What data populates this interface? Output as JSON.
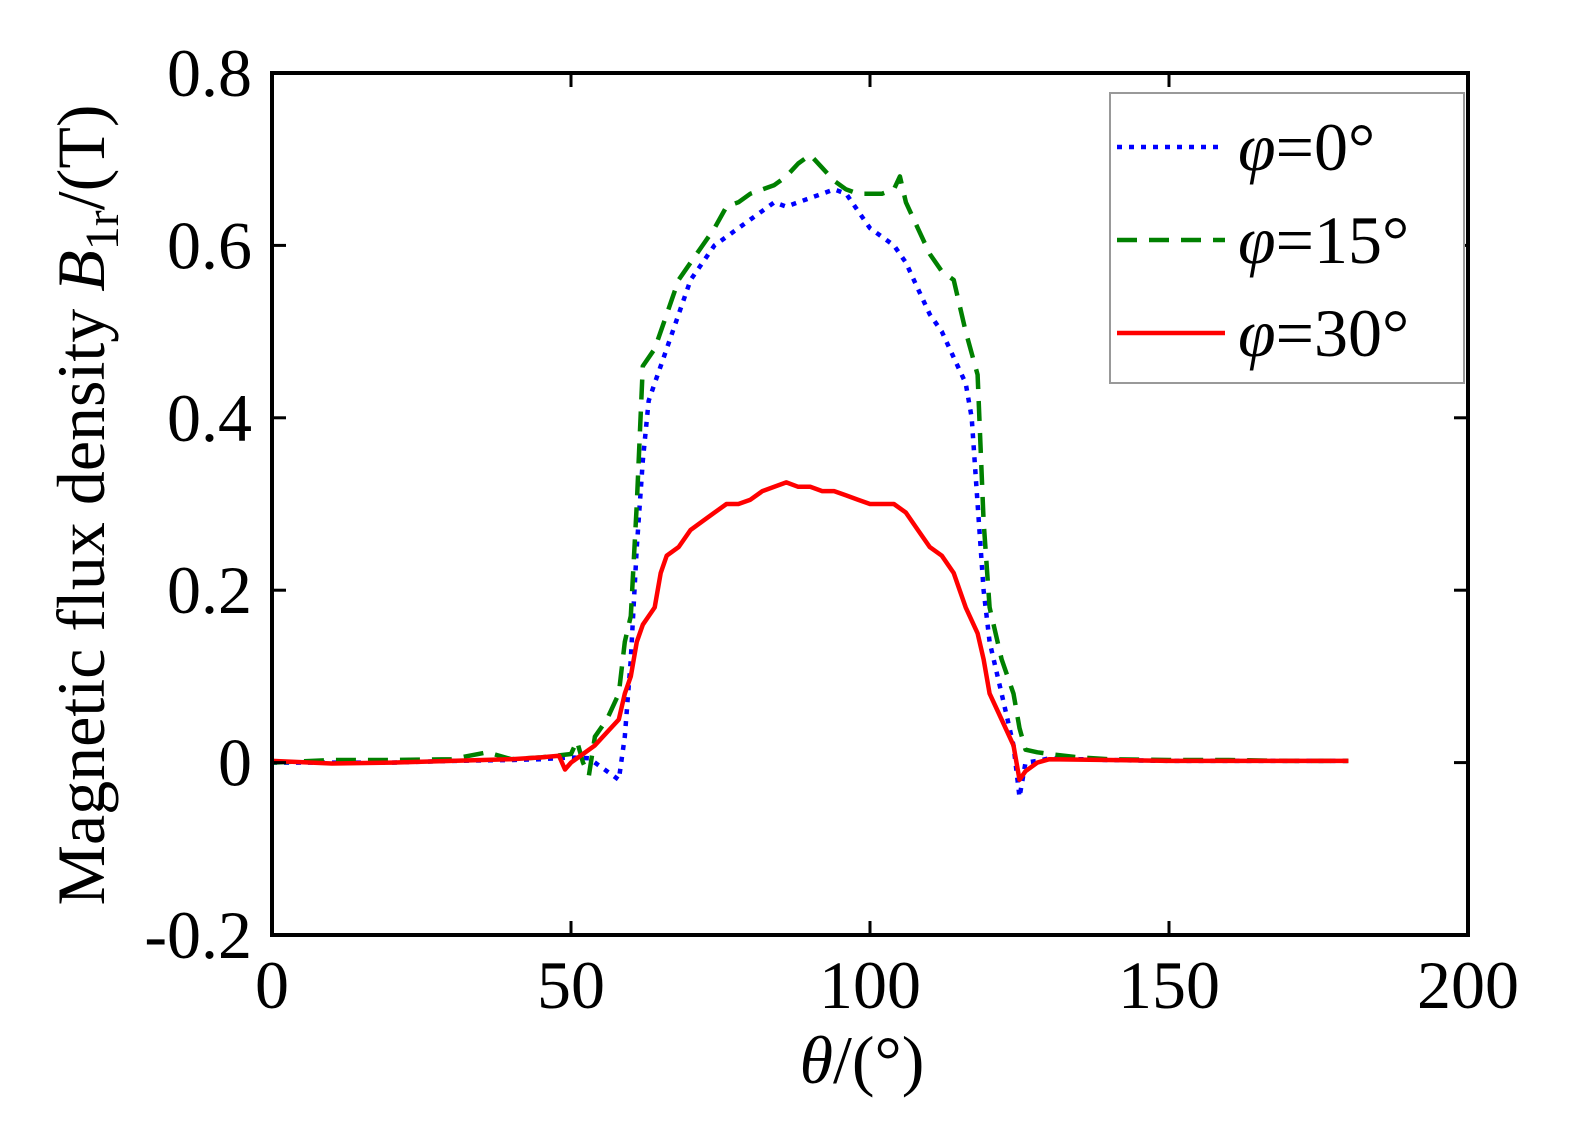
{
  "chart_data": {
    "type": "line",
    "title": "",
    "xlabel": {
      "symbol": "θ",
      "unit": "/(°)"
    },
    "ylabel": {
      "prefix": "Magnetic flux density ",
      "symbol": "B",
      "subscript": "1r",
      "unit": "/(T)"
    },
    "xlim": [
      0,
      200
    ],
    "ylim": [
      -0.2,
      0.8
    ],
    "xticks": [
      0,
      50,
      100,
      150,
      200
    ],
    "xtick_labels": [
      "0",
      "50",
      "100",
      "150",
      "200"
    ],
    "yticks": [
      -0.2,
      0,
      0.2,
      0.4,
      0.6,
      0.8
    ],
    "ytick_labels": [
      "-0.2",
      "0",
      "0.2",
      "0.4",
      "0.6",
      "0.8"
    ],
    "grid": false,
    "legend_position": "top-right",
    "series": [
      {
        "name": "φ=0°",
        "legend_symbol": "φ",
        "legend_value": "=0°",
        "color": "#0000ff",
        "style": "dotted",
        "x": [
          0,
          10,
          20,
          30,
          40,
          45,
          50,
          53,
          55,
          57,
          58,
          59,
          60,
          61,
          62,
          63,
          64,
          66,
          68,
          70,
          72,
          74,
          76,
          78,
          80,
          82,
          84,
          86,
          88,
          90,
          92,
          94,
          96,
          98,
          100,
          102,
          104,
          106,
          108,
          110,
          112,
          114,
          116,
          117,
          118,
          119,
          120,
          122,
          124,
          125,
          126,
          128,
          130,
          135,
          140,
          150,
          160,
          170,
          180
        ],
        "y": [
          0.0,
          0.0,
          0.0,
          0.002,
          0.003,
          0.004,
          0.006,
          0.005,
          -0.005,
          -0.015,
          -0.02,
          0.03,
          0.12,
          0.25,
          0.35,
          0.42,
          0.44,
          0.48,
          0.52,
          0.56,
          0.58,
          0.6,
          0.61,
          0.62,
          0.63,
          0.64,
          0.65,
          0.645,
          0.65,
          0.655,
          0.66,
          0.665,
          0.66,
          0.64,
          0.62,
          0.61,
          0.6,
          0.58,
          0.55,
          0.52,
          0.5,
          0.47,
          0.44,
          0.4,
          0.3,
          0.2,
          0.14,
          0.08,
          0.02,
          -0.04,
          0.0,
          0.002,
          0.005,
          0.004,
          0.003,
          0.002,
          0.002,
          0.002,
          0.002
        ]
      },
      {
        "name": "φ=15°",
        "legend_symbol": "φ",
        "legend_value": "=15°",
        "color": "#008000",
        "style": "dashed",
        "x": [
          0,
          10,
          20,
          30,
          36,
          40,
          45,
          50,
          51,
          52,
          53,
          54,
          56,
          58,
          59,
          60,
          61,
          62,
          64,
          66,
          68,
          70,
          72,
          74,
          76,
          78,
          80,
          82,
          84,
          86,
          88,
          90,
          92,
          94,
          96,
          98,
          100,
          102,
          104,
          105,
          106,
          108,
          110,
          112,
          114,
          116,
          118,
          119,
          120,
          122,
          124,
          125,
          126,
          128,
          130,
          135,
          140,
          150,
          160,
          170,
          180
        ],
        "y": [
          0.0,
          0.003,
          0.003,
          0.004,
          0.012,
          0.004,
          0.006,
          0.01,
          0.025,
          0.0,
          -0.015,
          0.03,
          0.05,
          0.08,
          0.14,
          0.17,
          0.3,
          0.46,
          0.48,
          0.52,
          0.56,
          0.58,
          0.6,
          0.62,
          0.645,
          0.65,
          0.66,
          0.665,
          0.67,
          0.68,
          0.695,
          0.705,
          0.69,
          0.675,
          0.665,
          0.66,
          0.66,
          0.66,
          0.665,
          0.68,
          0.65,
          0.62,
          0.59,
          0.57,
          0.56,
          0.5,
          0.45,
          0.28,
          0.18,
          0.12,
          0.08,
          0.04,
          0.015,
          0.012,
          0.01,
          0.006,
          0.004,
          0.003,
          0.003,
          0.002,
          0.002
        ]
      },
      {
        "name": "φ=30°",
        "legend_symbol": "φ",
        "legend_value": "=30°",
        "color": "#ff0000",
        "style": "solid",
        "x": [
          0,
          10,
          20,
          30,
          40,
          45,
          48,
          49,
          50,
          52,
          54,
          56,
          58,
          59,
          60,
          61,
          62,
          63,
          64,
          65,
          66,
          68,
          70,
          72,
          74,
          76,
          78,
          80,
          82,
          84,
          86,
          88,
          90,
          92,
          94,
          96,
          98,
          100,
          102,
          104,
          106,
          108,
          110,
          112,
          114,
          115,
          116,
          118,
          119,
          120,
          122,
          124,
          125,
          126,
          128,
          130,
          140,
          150,
          160,
          170,
          180
        ],
        "y": [
          0.002,
          -0.001,
          0.0,
          0.002,
          0.004,
          0.006,
          0.008,
          -0.008,
          0.0,
          0.01,
          0.02,
          0.035,
          0.05,
          0.08,
          0.1,
          0.14,
          0.16,
          0.17,
          0.18,
          0.22,
          0.24,
          0.25,
          0.27,
          0.28,
          0.29,
          0.3,
          0.3,
          0.305,
          0.315,
          0.32,
          0.325,
          0.32,
          0.32,
          0.315,
          0.315,
          0.31,
          0.305,
          0.3,
          0.3,
          0.3,
          0.29,
          0.27,
          0.25,
          0.24,
          0.22,
          0.2,
          0.18,
          0.15,
          0.12,
          0.08,
          0.05,
          0.02,
          -0.02,
          -0.01,
          0.0,
          0.004,
          0.003,
          0.002,
          0.002,
          0.002,
          0.002
        ]
      }
    ]
  }
}
